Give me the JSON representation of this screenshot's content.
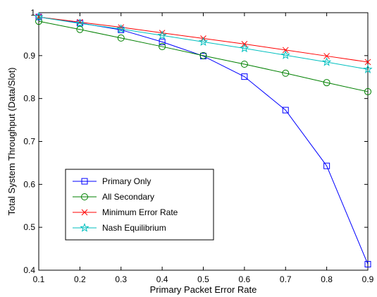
{
  "chart_data": {
    "type": "line",
    "title": "",
    "xlabel": "Primary Packet Error Rate",
    "ylabel": "Total System Throughput (Data/Slot)",
    "xlim": [
      0.1,
      0.9
    ],
    "ylim": [
      0.4,
      1.0
    ],
    "xticks": [
      0.1,
      0.2,
      0.3,
      0.4,
      0.5,
      0.6,
      0.7,
      0.8,
      0.9
    ],
    "yticks": [
      0.4,
      0.5,
      0.6,
      0.7,
      0.8,
      0.9,
      1.0
    ],
    "xtick_labels": [
      "0.1",
      "0.2",
      "0.3",
      "0.4",
      "0.5",
      "0.6",
      "0.7",
      "0.8",
      "0.9"
    ],
    "ytick_labels": [
      "0.4",
      "0.5",
      "0.6",
      "0.7",
      "0.8",
      "0.9",
      "1"
    ],
    "grid": false,
    "legend_position": "lower-left",
    "x": [
      0.1,
      0.2,
      0.3,
      0.4,
      0.5,
      0.6,
      0.7,
      0.8,
      0.9
    ],
    "series": [
      {
        "name": "Primary Only",
        "color": "#0000ff",
        "marker": "square",
        "values": [
          0.99,
          0.976,
          0.96,
          0.932,
          0.899,
          0.851,
          0.773,
          0.643,
          0.414
        ]
      },
      {
        "name": "All Secondary",
        "color": "#008000",
        "marker": "circle",
        "values": [
          0.98,
          0.961,
          0.941,
          0.921,
          0.9,
          0.88,
          0.859,
          0.837,
          0.816
        ]
      },
      {
        "name": "Minimum Error Rate",
        "color": "#ff0000",
        "marker": "x",
        "values": [
          0.99,
          0.978,
          0.966,
          0.953,
          0.94,
          0.927,
          0.913,
          0.899,
          0.885
        ]
      },
      {
        "name": "Nash Equilibrium",
        "color": "#00bfbf",
        "marker": "star",
        "values": [
          0.99,
          0.975,
          0.962,
          0.947,
          0.932,
          0.917,
          0.901,
          0.885,
          0.868
        ]
      }
    ]
  }
}
